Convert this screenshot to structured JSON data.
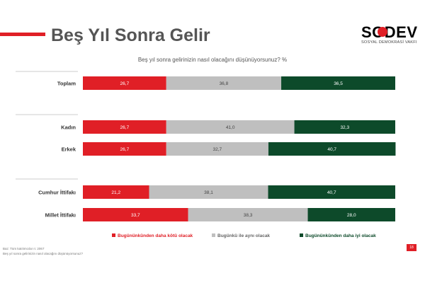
{
  "page": {
    "title": "Beş Yıl Sonra Gelir",
    "question": "Beş yıl sonra gelirinizin nasıl olacağını düşünüyorsunuz? %",
    "footnote_1": "Baz: Tüm katılımcılar n: 2067",
    "footnote_2": "Beş yıl sonra gelirinizin nasıl olacağını düşünüyorsunuz?",
    "page_number": "18"
  },
  "logo": {
    "wordmark": "SODEV",
    "subtitle": "SOSYAL DEMOKRASİ VAKFI"
  },
  "colors": {
    "red": "#e01f26",
    "grey": "#bfbfbf",
    "green": "#0d4a2a",
    "accent": "#e01f26"
  },
  "chart_data": {
    "type": "bar",
    "orientation": "horizontal",
    "stacked": true,
    "normalized_to": 100,
    "categories": [
      "Toplam",
      "Kadın",
      "Erkek",
      "Cumhur İttifakı",
      "Millet İttifakı"
    ],
    "series": [
      {
        "name": "Bugününkünden daha kötü olacak",
        "color": "#e01f26",
        "values": [
          26.7,
          26.7,
          26.7,
          21.2,
          33.7
        ],
        "labels": [
          "26,7",
          "26,7",
          "26,7",
          "21,2",
          "33,7"
        ]
      },
      {
        "name": "Bugünkü ile aynı olacak",
        "color": "#bfbfbf",
        "values": [
          36.8,
          41.0,
          32.7,
          38.1,
          38.3
        ],
        "labels": [
          "36,8",
          "41,0",
          "32,7",
          "38,1",
          "38,3"
        ]
      },
      {
        "name": "Bugününkünden daha iyi olacak",
        "color": "#0d4a2a",
        "values": [
          36.5,
          32.3,
          40.7,
          40.7,
          28.0
        ],
        "labels": [
          "36,5",
          "32,3",
          "40,7",
          "40,7",
          "28,0"
        ]
      }
    ],
    "legend_position": "bottom",
    "grid": false
  }
}
